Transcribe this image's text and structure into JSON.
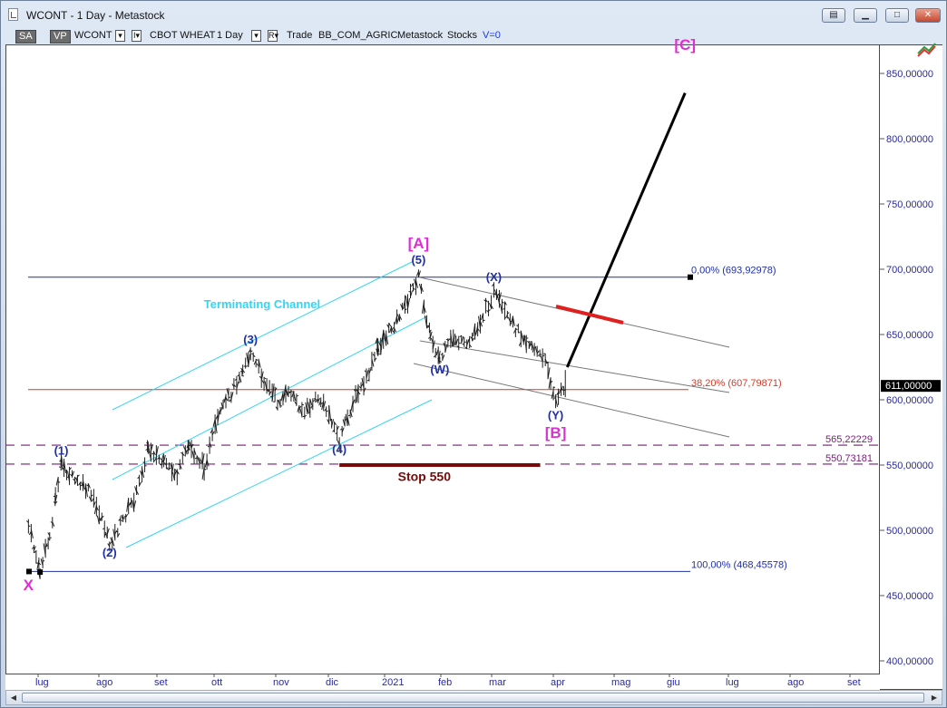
{
  "window": {
    "title": "WCONT - 1 Day - Metastock",
    "buttons": [
      "restore-group",
      "minimize",
      "maximize",
      "close"
    ]
  },
  "toolbar": {
    "sa": "SA",
    "vp": "VP",
    "symbol": "WCONT",
    "symbol_drop": "▾",
    "instrument": "CBOT WHEAT",
    "instrument_drop": "I▾",
    "period": "1 Day",
    "period_drop": "▾",
    "r": "R▾",
    "trade": "Trade",
    "source": "BB_COM_AGRIC",
    "metastock": "Metastock",
    "stocks": "Stocks",
    "vlabel": "V=0"
  },
  "chart_data": {
    "type": "ohlc",
    "symbol": "WCONT",
    "period": "1 Day",
    "ylim": [
      390,
      875
    ],
    "y_ticks": [
      "400,00000",
      "450,00000",
      "500,00000",
      "550,00000",
      "600,00000",
      "650,00000",
      "700,00000",
      "750,00000",
      "800,00000",
      "850,00000"
    ],
    "y_tick_values": [
      400,
      450,
      500,
      550,
      600,
      650,
      700,
      750,
      800,
      850
    ],
    "x_ticks": [
      "lug",
      "ago",
      "set",
      "ott",
      "nov",
      "dic",
      "2021",
      "feb",
      "mar",
      "apr",
      "mag",
      "giu",
      "lug",
      "ago",
      "set"
    ],
    "last_price_label": "611,00000",
    "last_price": 611,
    "price_path": [
      {
        "date": "2020-06-26",
        "price": 503
      },
      {
        "date": "2020-06-30",
        "price": 480
      },
      {
        "date": "2020-07-02",
        "price": 468
      },
      {
        "date": "2020-07-07",
        "price": 495
      },
      {
        "date": "2020-07-10",
        "price": 525
      },
      {
        "date": "2020-07-13",
        "price": 550
      },
      {
        "date": "2020-07-20",
        "price": 538
      },
      {
        "date": "2020-07-27",
        "price": 530
      },
      {
        "date": "2020-08-03",
        "price": 510
      },
      {
        "date": "2020-08-07",
        "price": 489
      },
      {
        "date": "2020-08-14",
        "price": 508
      },
      {
        "date": "2020-08-21",
        "price": 528
      },
      {
        "date": "2020-08-27",
        "price": 564
      },
      {
        "date": "2020-09-04",
        "price": 550
      },
      {
        "date": "2020-09-11",
        "price": 542
      },
      {
        "date": "2020-09-17",
        "price": 565
      },
      {
        "date": "2020-09-25",
        "price": 548
      },
      {
        "date": "2020-10-02",
        "price": 585
      },
      {
        "date": "2020-10-09",
        "price": 605
      },
      {
        "date": "2020-10-15",
        "price": 625
      },
      {
        "date": "2020-10-19",
        "price": 635
      },
      {
        "date": "2020-10-26",
        "price": 615
      },
      {
        "date": "2020-11-02",
        "price": 598
      },
      {
        "date": "2020-11-09",
        "price": 605
      },
      {
        "date": "2020-11-16",
        "price": 590
      },
      {
        "date": "2020-11-23",
        "price": 602
      },
      {
        "date": "2020-11-30",
        "price": 585
      },
      {
        "date": "2020-12-04",
        "price": 568
      },
      {
        "date": "2020-12-11",
        "price": 598
      },
      {
        "date": "2020-12-18",
        "price": 615
      },
      {
        "date": "2020-12-24",
        "price": 640
      },
      {
        "date": "2020-12-31",
        "price": 655
      },
      {
        "date": "2021-01-07",
        "price": 672
      },
      {
        "date": "2021-01-14",
        "price": 694
      },
      {
        "date": "2021-01-20",
        "price": 650
      },
      {
        "date": "2021-01-25",
        "price": 630
      },
      {
        "date": "2021-02-01",
        "price": 648
      },
      {
        "date": "2021-02-08",
        "price": 640
      },
      {
        "date": "2021-02-15",
        "price": 660
      },
      {
        "date": "2021-02-22",
        "price": 682
      },
      {
        "date": "2021-03-01",
        "price": 662
      },
      {
        "date": "2021-03-08",
        "price": 650
      },
      {
        "date": "2021-03-15",
        "price": 640
      },
      {
        "date": "2021-03-22",
        "price": 625
      },
      {
        "date": "2021-03-26",
        "price": 598
      },
      {
        "date": "2021-03-31",
        "price": 611
      }
    ],
    "wave_labels": [
      {
        "text": "(1)",
        "date": "2020-07-13",
        "price": 558
      },
      {
        "text": "(2)",
        "date": "2020-08-07",
        "price": 480
      },
      {
        "text": "(3)",
        "date": "2020-10-19",
        "price": 643
      },
      {
        "text": "(4)",
        "date": "2020-12-04",
        "price": 559
      },
      {
        "text": "(5)",
        "date": "2021-01-14",
        "price": 704
      },
      {
        "text": "(W)",
        "date": "2021-01-25",
        "price": 620
      },
      {
        "text": "(X)",
        "date": "2021-02-22",
        "price": 691
      },
      {
        "text": "(Y)",
        "date": "2021-03-26",
        "price": 585
      }
    ],
    "degree_labels": [
      {
        "text": "[A]",
        "date": "2021-01-14",
        "price": 716
      },
      {
        "text": "[B]",
        "date": "2021-03-26",
        "price": 571
      },
      {
        "text": "[C]",
        "date": "2021-06-01",
        "price": 868
      },
      {
        "text": "X",
        "date": "2020-06-26",
        "price": 454
      }
    ],
    "annotations": [
      {
        "text": "Terminating Channel",
        "date": "2020-10-25",
        "price": 670
      },
      {
        "text": "Stop 550",
        "date": "2021-01-17",
        "price": 538
      }
    ],
    "fib_levels": [
      {
        "label": "0,00% (693,92978)",
        "price": 693.92978
      },
      {
        "label": "38,20% (607,79871)",
        "price": 607.79871
      },
      {
        "label": "100,00% (468,45578)",
        "price": 468.45578
      }
    ],
    "dashed_levels": [
      {
        "label": "565,22229",
        "price": 565.22229
      },
      {
        "label": "550,73181",
        "price": 550.73181
      }
    ],
    "stop_line": {
      "price": 550,
      "from": "2020-12-04",
      "to": "2021-03-18"
    },
    "projection": {
      "from_date": "2021-04-01",
      "from_price": 625,
      "to_date": "2021-06-01",
      "to_price": 835
    },
    "colors": {
      "bars": "#1e1e1e",
      "wave_labels": "#1f2fa8",
      "degree_labels": "#e02ed6",
      "x_label": "#158a22",
      "channel": "#33d5f4",
      "fib_0_100": "#1f2fa8",
      "fib_382": "#d23c2a",
      "dashed": "#7a1a7a",
      "stop": "#7a0a0a",
      "projection": "#000000",
      "target_zone": "#e0201e",
      "descending_channel": "#777777",
      "price_box": "#000000"
    }
  }
}
